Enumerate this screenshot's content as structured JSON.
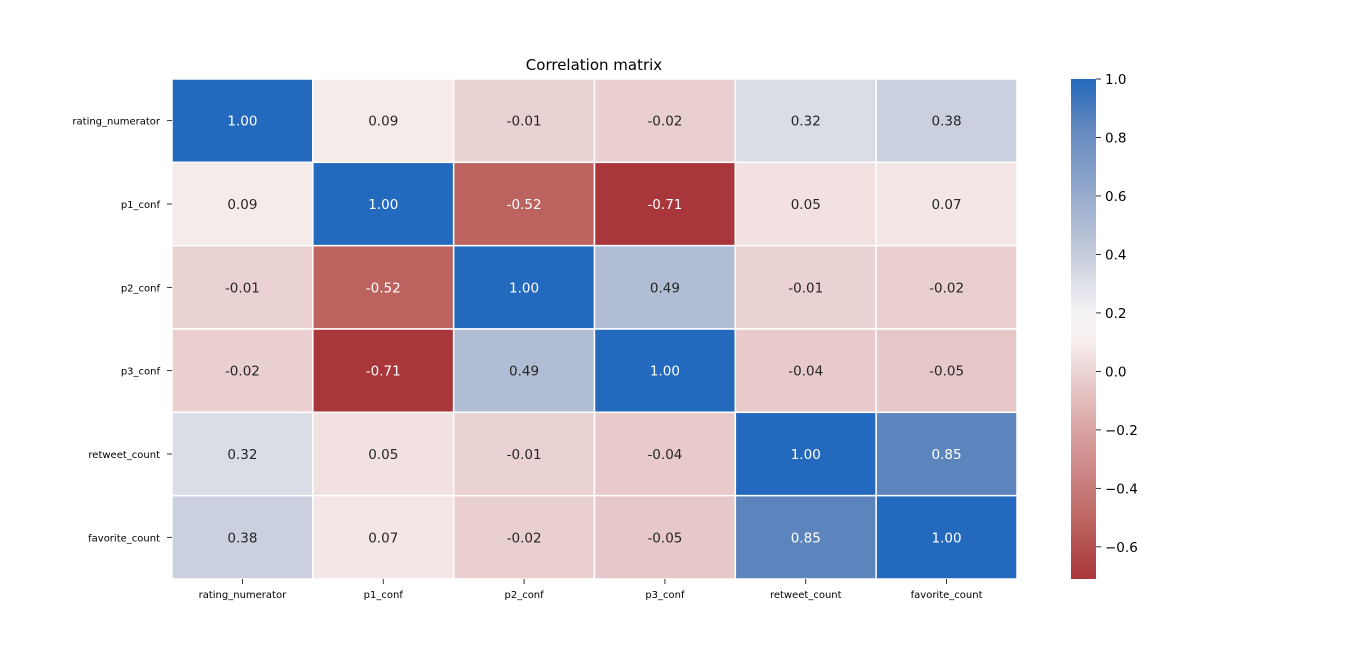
{
  "chart_data": {
    "type": "heatmap",
    "title": "Correlation matrix",
    "xlabel": "",
    "ylabel": "",
    "row_labels": [
      "rating_numerator",
      "p1_conf",
      "p2_conf",
      "p3_conf",
      "retweet_count",
      "favorite_count"
    ],
    "col_labels": [
      "rating_numerator",
      "p1_conf",
      "p2_conf",
      "p3_conf",
      "retweet_count",
      "favorite_count"
    ],
    "values": [
      [
        1.0,
        0.09,
        -0.01,
        -0.02,
        0.32,
        0.38
      ],
      [
        0.09,
        1.0,
        -0.52,
        -0.71,
        0.05,
        0.07
      ],
      [
        -0.01,
        -0.52,
        1.0,
        0.49,
        -0.01,
        -0.02
      ],
      [
        -0.02,
        -0.71,
        0.49,
        1.0,
        -0.04,
        -0.05
      ],
      [
        0.32,
        0.05,
        -0.01,
        -0.04,
        1.0,
        0.85
      ],
      [
        0.38,
        0.07,
        -0.02,
        -0.05,
        0.85,
        1.0
      ]
    ],
    "cell_labels": [
      [
        "1.00",
        "0.09",
        "-0.01",
        "-0.02",
        "0.32",
        "0.38"
      ],
      [
        "0.09",
        "1.00",
        "-0.52",
        "-0.71",
        "0.05",
        "0.07"
      ],
      [
        "-0.01",
        "-0.52",
        "1.00",
        "0.49",
        "-0.01",
        "-0.02"
      ],
      [
        "-0.02",
        "-0.71",
        "0.49",
        "1.00",
        "-0.04",
        "-0.05"
      ],
      [
        "0.32",
        "0.05",
        "-0.01",
        "-0.04",
        "1.00",
        "0.85"
      ],
      [
        "0.38",
        "0.07",
        "-0.02",
        "-0.05",
        "0.85",
        "1.00"
      ]
    ],
    "colorbar": {
      "range": [
        -0.71,
        1.0
      ],
      "ticks": [
        1.0,
        0.8,
        0.6,
        0.4,
        0.2,
        0.0,
        -0.2,
        -0.4,
        -0.6
      ],
      "tick_labels": [
        "1.0",
        "0.8",
        "0.6",
        "0.4",
        "0.2",
        "0.0",
        "−0.2",
        "−0.4",
        "−0.6"
      ]
    },
    "colormap": {
      "stops": [
        {
          "value": -0.71,
          "color": "#a9363b"
        },
        {
          "value": -0.52,
          "color": "#bc6360"
        },
        {
          "value": -0.2,
          "color": "#d9a3a3"
        },
        {
          "value": 0.0,
          "color": "#ecd4d4"
        },
        {
          "value": 0.1,
          "color": "#f7eeee"
        },
        {
          "value": 0.2,
          "color": "#f4f2f4"
        },
        {
          "value": 0.32,
          "color": "#dadde6"
        },
        {
          "value": 0.38,
          "color": "#cad0de"
        },
        {
          "value": 0.49,
          "color": "#b1bdd4"
        },
        {
          "value": 0.85,
          "color": "#5d85bd"
        },
        {
          "value": 1.0,
          "color": "#2369bd"
        }
      ],
      "text_dark": "#262626",
      "text_light": "#ffffff",
      "grid_line": "#ffffff"
    },
    "grid": false,
    "legend": "colorbar-right"
  }
}
